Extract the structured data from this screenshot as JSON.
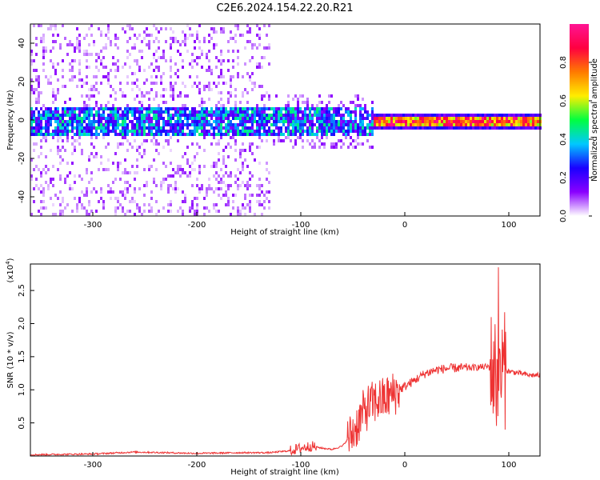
{
  "title": "C2E6.2024.154.22.20.R21",
  "chart_data": [
    {
      "type": "heatmap",
      "xlabel": "Height of straight line (km)",
      "ylabel": "Frequency (Hz)",
      "xlim": [
        -360,
        130
      ],
      "ylim": [
        -50,
        50
      ],
      "x_ticks": [
        -300,
        -200,
        -100,
        0,
        100
      ],
      "y_ticks": [
        -40,
        -20,
        0,
        20,
        40
      ],
      "colorbar": {
        "label": "Normalized spectral amplitude",
        "range": [
          0.0,
          1.0
        ],
        "ticks": [
          "0.0",
          "0.2",
          "0.4",
          "0.6",
          "0.8"
        ],
        "colors": [
          "#ffffff",
          "#8a00ff",
          "#1a00ff",
          "#00c8ff",
          "#00ff40",
          "#ffee00",
          "#ff7a00",
          "#ff0040",
          "#ff1493"
        ]
      },
      "features": {
        "noise_band_center_hz": 0,
        "broadband_noise_extent_km": [
          -360,
          -130
        ],
        "strong_signal_from_km": -30,
        "strong_signal_to_km": 130
      }
    },
    {
      "type": "line",
      "xlabel": "Height of straight line (km)",
      "ylabel": "SNR (10 * v/v)",
      "y_multiplier": "(x10",
      "y_multiplier_exp": "4",
      "y_multiplier_close": ")",
      "xlim": [
        -360,
        130
      ],
      "ylim": [
        0,
        2.9
      ],
      "x_ticks": [
        -300,
        -200,
        -100,
        0,
        100
      ],
      "y_ticks": [
        "0.5",
        "1.0",
        "1.5",
        "2.0",
        "2.5"
      ],
      "color": "#ee3333",
      "series": [
        {
          "x": [
            -360,
            -300,
            -260,
            -200,
            -160,
            -130,
            -110,
            -100,
            -90,
            -80,
            -70,
            -60,
            -50,
            -40,
            -35,
            -30,
            -25,
            -20,
            -15,
            -10,
            -5,
            0,
            10,
            20,
            30,
            40,
            50,
            60,
            70,
            80,
            85,
            88,
            90,
            92,
            95,
            100,
            110,
            120,
            130
          ],
          "values": [
            0.02,
            0.03,
            0.06,
            0.04,
            0.05,
            0.05,
            0.08,
            0.12,
            0.15,
            0.12,
            0.1,
            0.15,
            0.35,
            0.65,
            0.75,
            0.8,
            0.85,
            0.85,
            0.9,
            0.95,
            1.0,
            1.05,
            1.15,
            1.25,
            1.3,
            1.32,
            1.33,
            1.33,
            1.34,
            1.35,
            1.3,
            1.2,
            1.0,
            1.25,
            1.3,
            1.28,
            1.25,
            1.22,
            1.22
          ]
        }
      ]
    }
  ]
}
